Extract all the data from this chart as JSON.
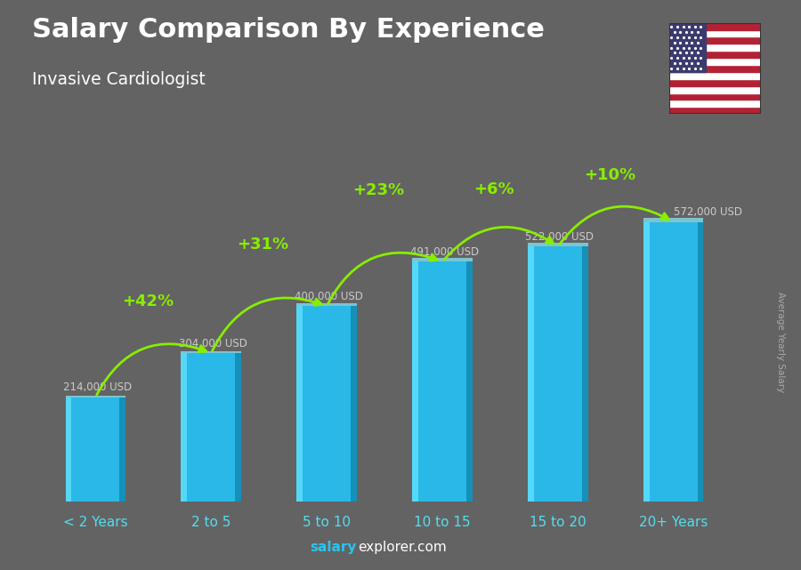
{
  "title": "Salary Comparison By Experience",
  "subtitle": "Invasive Cardiologist",
  "categories": [
    "< 2 Years",
    "2 to 5",
    "5 to 10",
    "10 to 15",
    "15 to 20",
    "20+ Years"
  ],
  "values": [
    214000,
    304000,
    400000,
    491000,
    522000,
    572000
  ],
  "bar_color": "#29c4f0",
  "background_color": "#636363",
  "title_color": "#ffffff",
  "subtitle_color": "#ffffff",
  "label_color": "#cccccc",
  "xtick_color": "#55ddee",
  "salary_labels": [
    "214,000 USD",
    "304,000 USD",
    "400,000 USD",
    "491,000 USD",
    "522,000 USD",
    "572,000 USD"
  ],
  "pct_labels": [
    "+42%",
    "+31%",
    "+23%",
    "+6%",
    "+10%"
  ],
  "pct_color": "#88ee00",
  "footer_salary_color": "#29c4f0",
  "footer_rest_color": "#ffffff",
  "side_label": "Average Yearly Salary",
  "ylim": [
    0,
    700000
  ],
  "bar_width": 0.52
}
